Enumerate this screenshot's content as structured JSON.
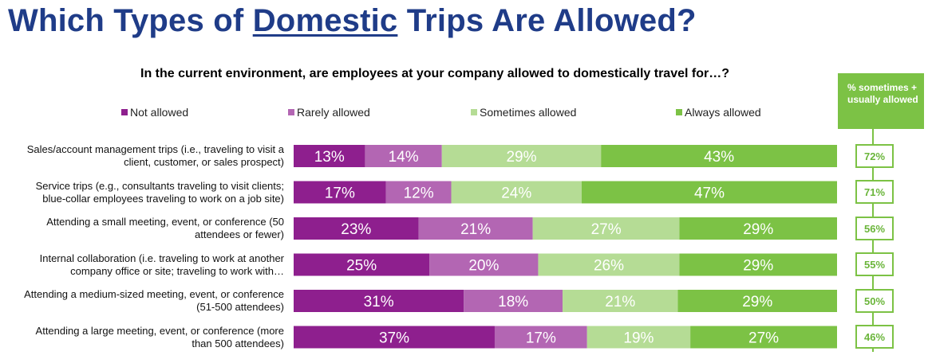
{
  "title": {
    "before": "Which Types of ",
    "underlined": "Domestic",
    "after": " Trips Are Allowed?"
  },
  "subtitle": "In the current environment, are employees at your company allowed to domestically travel for…?",
  "side_header": "% sometimes + usually allowed",
  "colors": {
    "not_allowed": "#8e1f8e",
    "rarely_allowed": "#b366b3",
    "sometimes_allowed": "#b5dc95",
    "always_allowed": "#7cc245"
  },
  "chart_data": {
    "type": "bar",
    "orientation": "horizontal",
    "stacked": "100%",
    "legend_position": "top",
    "categories": [
      "Sales/account management trips (i.e., traveling to visit a client, customer, or sales prospect)",
      "Service trips (e.g., consultants traveling to visit clients; blue-collar employees traveling to work on a job site)",
      "Attending a small meeting, event, or conference (50 attendees or fewer)",
      "Internal collaboration (i.e. traveling to work at another company office or site; traveling to work with…",
      "Attending a medium-sized meeting, event, or conference (51-500 attendees)",
      "Attending a large meeting, event, or conference (more than 500 attendees)"
    ],
    "series": [
      {
        "name": "Not allowed",
        "values": [
          13,
          17,
          23,
          25,
          31,
          37
        ],
        "labels": [
          "13%",
          "17%",
          "23%",
          "25%",
          "31%",
          "37%"
        ]
      },
      {
        "name": "Rarely allowed",
        "values": [
          14,
          12,
          21,
          20,
          18,
          17
        ],
        "labels": [
          "14%",
          "12%",
          "21%",
          "20%",
          "18%",
          "17%"
        ]
      },
      {
        "name": "Sometimes allowed",
        "values": [
          29,
          24,
          27,
          26,
          21,
          19
        ],
        "labels": [
          "29%",
          "24%",
          "27%",
          "26%",
          "21%",
          "19%"
        ]
      },
      {
        "name": "Always allowed",
        "values": [
          43,
          47,
          29,
          29,
          29,
          27
        ],
        "labels": [
          "43%",
          "47%",
          "29%",
          "29%",
          "29%",
          "27%"
        ]
      }
    ],
    "side_values": [
      "72%",
      "71%",
      "56%",
      "55%",
      "50%",
      "46%"
    ]
  }
}
